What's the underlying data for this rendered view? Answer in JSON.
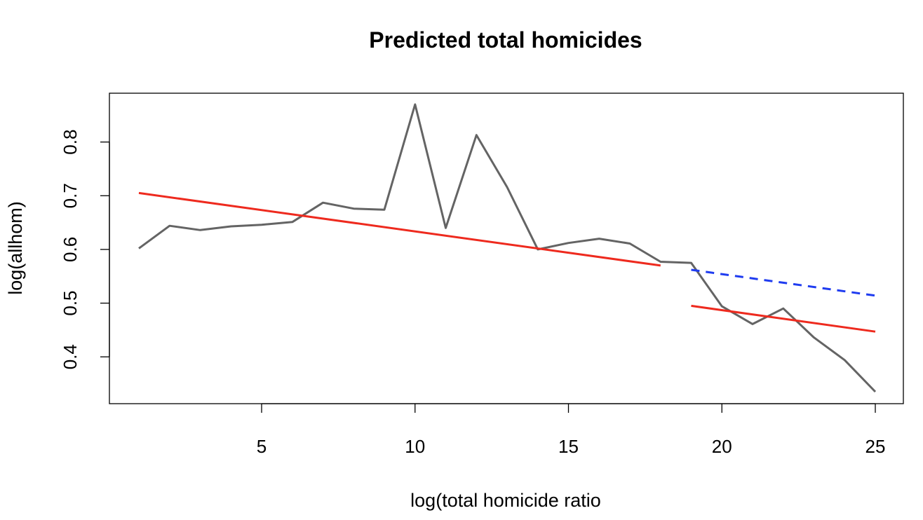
{
  "chart_data": {
    "type": "line",
    "title": "Predicted total homicides",
    "xlabel": "log(total homicide ratio",
    "ylabel": "log(allhom)",
    "xlim": [
      1,
      25
    ],
    "ylim": [
      0.335,
      0.87
    ],
    "xticks": [
      5,
      10,
      15,
      20,
      25
    ],
    "yticks": [
      0.4,
      0.5,
      0.6,
      0.7,
      0.8
    ],
    "grid": false,
    "series": [
      {
        "style": "solid",
        "color": "#646464",
        "x": [
          1,
          2,
          3,
          4,
          5,
          6,
          7,
          8,
          9,
          10,
          11,
          12,
          13,
          14,
          15,
          16,
          17,
          18,
          19,
          20,
          21,
          22,
          23,
          24,
          25
        ],
        "y": [
          0.602,
          0.644,
          0.636,
          0.643,
          0.646,
          0.651,
          0.687,
          0.676,
          0.674,
          0.87,
          0.64,
          0.813,
          0.716,
          0.6,
          0.612,
          0.62,
          0.611,
          0.577,
          0.575,
          0.494,
          0.461,
          0.49,
          0.436,
          0.394,
          0.335
        ]
      },
      {
        "style": "solid",
        "color": "#EE2A1E",
        "x": [
          1,
          18
        ],
        "y": [
          0.705,
          0.57
        ]
      },
      {
        "style": "dashed",
        "color": "#1F3CF0",
        "x": [
          19,
          25
        ],
        "y": [
          0.562,
          0.514
        ]
      },
      {
        "style": "solid",
        "color": "#EE2A1E",
        "x": [
          19,
          25
        ],
        "y": [
          0.495,
          0.447
        ]
      }
    ]
  }
}
